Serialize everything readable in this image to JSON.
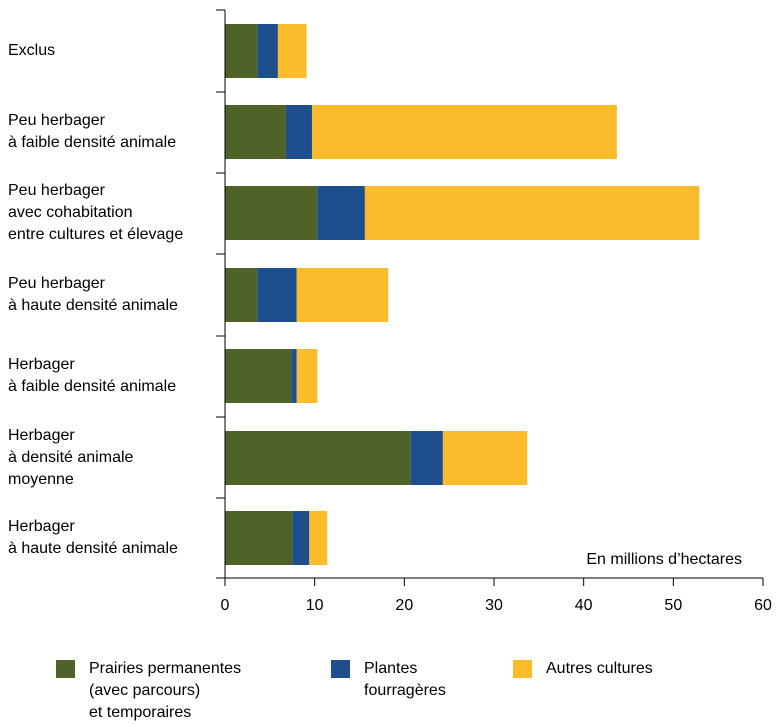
{
  "chart_data": {
    "type": "bar",
    "orientation": "horizontal",
    "stacked": true,
    "title": "",
    "xlabel": "",
    "unit_label": "En millions d’hectares",
    "xlim": [
      0,
      60
    ],
    "xticks": [
      0,
      10,
      20,
      30,
      40,
      50,
      60
    ],
    "grid": false,
    "legend_position": "bottom",
    "categories": [
      "Exclus",
      "Peu herbager\nà faible densité animale",
      "Peu herbager\navec cohabitation\nentre cultures et élevage",
      "Peu herbager\nà haute densité animale",
      "Herbager\nà faible densité animale",
      "Herbager\nà densité animale\nmoyenne",
      "Herbager\nà haute densité animale"
    ],
    "series": [
      {
        "name": "Prairies permanentes\n(avec parcours)\net temporaires",
        "color": "#4f6228",
        "values": [
          3.6,
          6.8,
          10.3,
          3.6,
          7.4,
          20.7,
          7.5
        ]
      },
      {
        "name": "Plantes\nfourragères",
        "color": "#1f4e8c",
        "values": [
          2.3,
          2.9,
          5.3,
          4.4,
          0.6,
          3.6,
          1.9
        ]
      },
      {
        "name": "Autres cultures",
        "color": "#fbbc2c",
        "values": [
          3.2,
          34.0,
          37.3,
          10.2,
          2.3,
          9.4,
          2.0
        ]
      }
    ]
  }
}
